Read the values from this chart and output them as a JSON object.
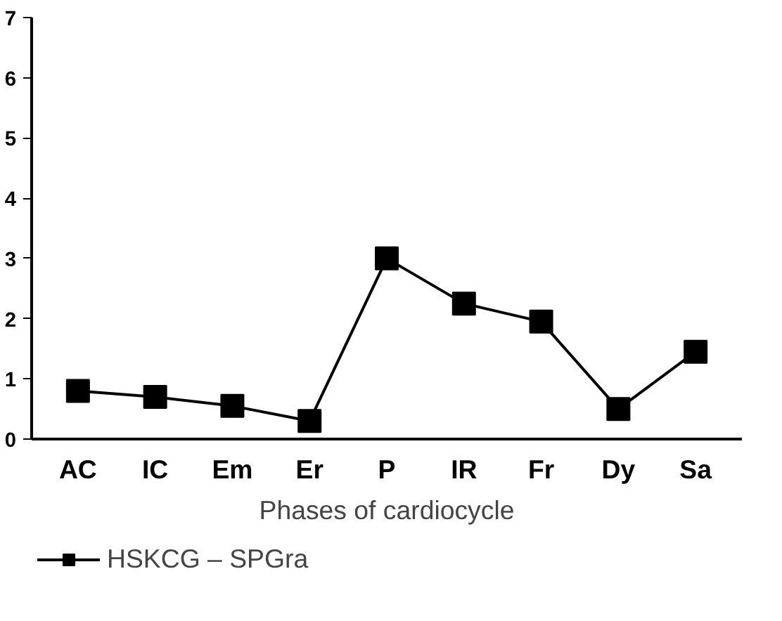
{
  "chart_data": {
    "type": "line",
    "xlabel": "Phases of cardiocycle",
    "categories": [
      "AC",
      "IC",
      "Em",
      "Er",
      "P",
      "IR",
      "Fr",
      "Dy",
      "Sa"
    ],
    "series": [
      {
        "name": "HSKCG – SPGra",
        "color": "#000000",
        "values": [
          0.8,
          0.7,
          0.55,
          0.3,
          3.0,
          2.25,
          1.95,
          0.5,
          1.45
        ]
      }
    ],
    "ylim": [
      0,
      7
    ],
    "yticks": [
      0,
      1,
      2,
      3,
      4,
      5,
      6,
      7
    ],
    "grid": false,
    "legend": "bottom",
    "marker": "square",
    "line_style": "solid"
  }
}
